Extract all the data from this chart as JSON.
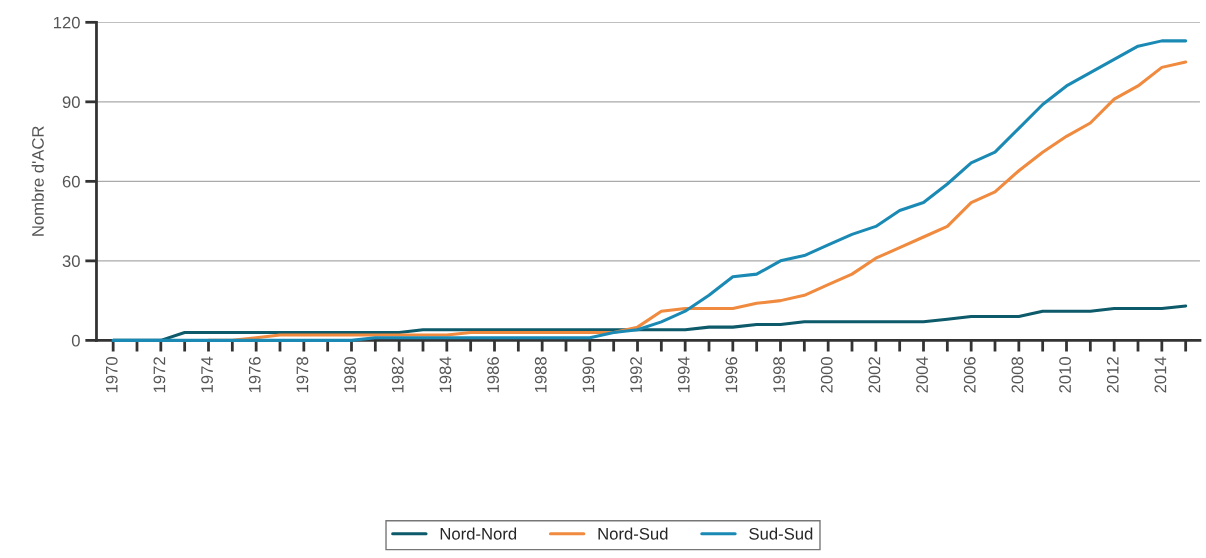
{
  "chart_data": {
    "type": "line",
    "ylabel": "Nombre d'ACR",
    "x": [
      1970,
      1971,
      1972,
      1973,
      1974,
      1975,
      1976,
      1977,
      1978,
      1979,
      1980,
      1981,
      1982,
      1983,
      1984,
      1985,
      1986,
      1987,
      1988,
      1989,
      1990,
      1991,
      1992,
      1993,
      1994,
      1995,
      1996,
      1997,
      1998,
      1999,
      2000,
      2001,
      2002,
      2003,
      2004,
      2005,
      2006,
      2007,
      2008,
      2009,
      2010,
      2011,
      2012,
      2013,
      2014,
      2015
    ],
    "series": [
      {
        "name": "Nord-Nord",
        "color": "#0d5a6b",
        "values": [
          0,
          0,
          0,
          3,
          3,
          3,
          3,
          3,
          3,
          3,
          3,
          3,
          3,
          4,
          4,
          4,
          4,
          4,
          4,
          4,
          4,
          4,
          4,
          4,
          4,
          5,
          5,
          6,
          6,
          7,
          7,
          7,
          7,
          7,
          7,
          8,
          9,
          9,
          9,
          11,
          11,
          11,
          12,
          12,
          12,
          13
        ]
      },
      {
        "name": "Nord-Sud",
        "color": "#f08a3e",
        "values": [
          null,
          null,
          null,
          null,
          0,
          0,
          1,
          2,
          2,
          2,
          2,
          2,
          2,
          2,
          2,
          3,
          3,
          3,
          3,
          3,
          3,
          3,
          5,
          11,
          12,
          12,
          12,
          14,
          15,
          17,
          21,
          25,
          31,
          35,
          39,
          43,
          52,
          56,
          64,
          71,
          77,
          82,
          91,
          96,
          103,
          105
        ]
      },
      {
        "name": "Sud-Sud",
        "color": "#1a8ab5",
        "values": [
          0,
          0,
          0,
          0,
          0,
          0,
          0,
          0,
          0,
          0,
          0,
          1,
          1,
          1,
          1,
          1,
          1,
          1,
          1,
          1,
          1,
          3,
          4,
          7,
          11,
          17,
          24,
          25,
          30,
          32,
          36,
          40,
          43,
          49,
          52,
          59,
          67,
          71,
          80,
          89,
          96,
          101,
          106,
          111,
          113,
          113
        ]
      }
    ],
    "xlim": [
      1969.3,
      2015.6
    ],
    "xticks": [
      1970,
      {
        "value": 1971,
        "label": null
      },
      1972,
      {
        "value": 1973,
        "label": null
      },
      1974,
      {
        "value": 1975,
        "label": null
      },
      1976,
      {
        "value": 1977,
        "label": null
      },
      1978,
      {
        "value": 1979,
        "label": null
      },
      1980,
      {
        "value": 1981,
        "label": null
      },
      1982,
      {
        "value": 1983,
        "label": null
      },
      1984,
      {
        "value": 1985,
        "label": null
      },
      1986,
      {
        "value": 1987,
        "label": null
      },
      1988,
      {
        "value": 1989,
        "label": null
      },
      1990,
      {
        "value": 1991,
        "label": null
      },
      1992,
      {
        "value": 1993,
        "label": null
      },
      1994,
      {
        "value": 1995,
        "label": null
      },
      1996,
      {
        "value": 1997,
        "label": null
      },
      1998,
      {
        "value": 1999,
        "label": null
      },
      2000,
      {
        "value": 2001,
        "label": null
      },
      2002,
      {
        "value": 2003,
        "label": null
      },
      2004,
      {
        "value": 2005,
        "label": null
      },
      2006,
      {
        "value": 2007,
        "label": null
      },
      2008,
      {
        "value": 2009,
        "label": null
      },
      2010,
      {
        "value": 2011,
        "label": null
      },
      2012,
      {
        "value": 2013,
        "label": null
      },
      2014,
      {
        "value": 2015,
        "label": null
      }
    ],
    "ylim": [
      0,
      120
    ],
    "yticks": [
      0,
      30,
      60,
      90,
      120
    ],
    "grid": "y",
    "legend": "bottom",
    "marker": "none",
    "line_style": "solid"
  }
}
